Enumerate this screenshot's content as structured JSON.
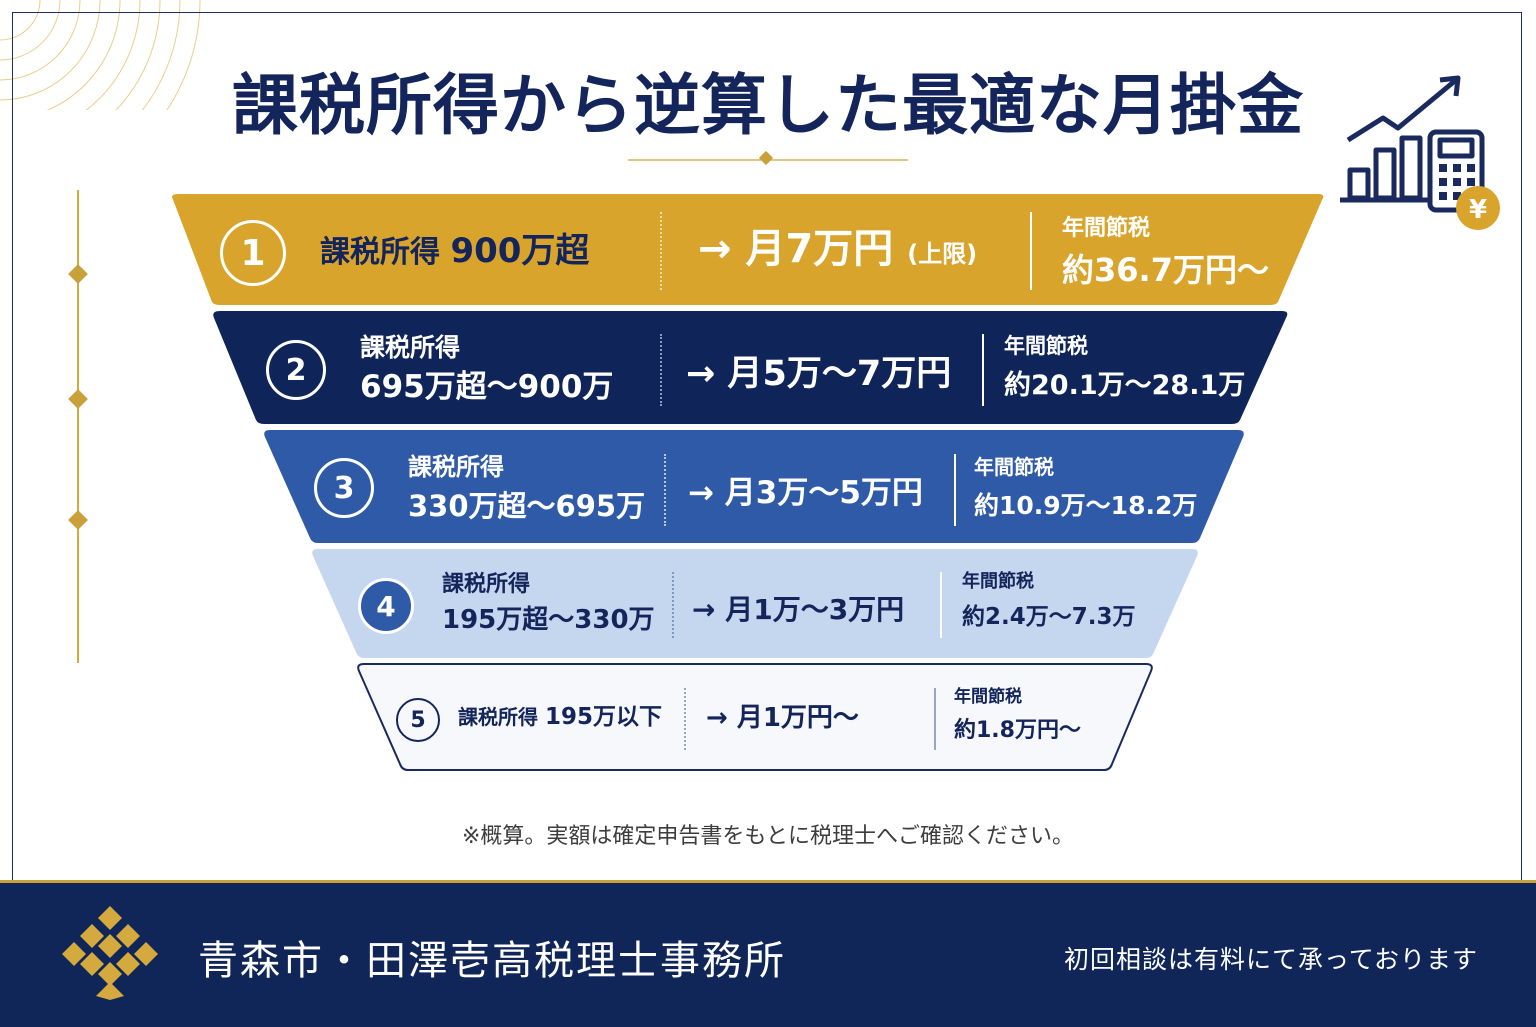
{
  "title": "課税所得から逆算した最適な月掛金",
  "tiers": [
    {
      "number": "1",
      "income_label": "課税所得",
      "income_range": "900万超",
      "monthly": "→ 月7万円",
      "monthly_note": "(上限)",
      "saving_label": "年間節税",
      "saving_value": "約36.7万円〜"
    },
    {
      "number": "2",
      "income_label": "課税所得",
      "income_range": "695万超〜900万",
      "monthly": "→ 月5万〜7万円",
      "saving_label": "年間節税",
      "saving_value": "約20.1万〜28.1万"
    },
    {
      "number": "3",
      "income_label": "課税所得",
      "income_range": "330万超〜695万",
      "monthly": "→ 月3万〜5万円",
      "saving_label": "年間節税",
      "saving_value": "約10.9万〜18.2万"
    },
    {
      "number": "4",
      "income_label": "課税所得",
      "income_range": "195万超〜330万",
      "monthly": "→ 月1万〜3万円",
      "saving_label": "年間節税",
      "saving_value": "約2.4万〜7.3万"
    },
    {
      "number": "5",
      "income_label": "課税所得",
      "income_range": "195万以下",
      "monthly": "→ 月1万円〜",
      "saving_label": "年間節税",
      "saving_value": "約1.8万円〜"
    }
  ],
  "note": "※概算。実額は確定申告書をもとに税理士へご確認ください。",
  "footer": {
    "firm_name": "青森市・田澤壱高税理士事務所",
    "consultation": "初回相談は有料にて承っております"
  },
  "icons": {
    "yen_symbol": "¥"
  },
  "colors": {
    "navy": "#13255a",
    "gold": "#d9a42c",
    "band2": "#0f2458",
    "band3": "#2f5aa8",
    "band4": "#c5d6ef",
    "band5": "#f7f8fb"
  }
}
